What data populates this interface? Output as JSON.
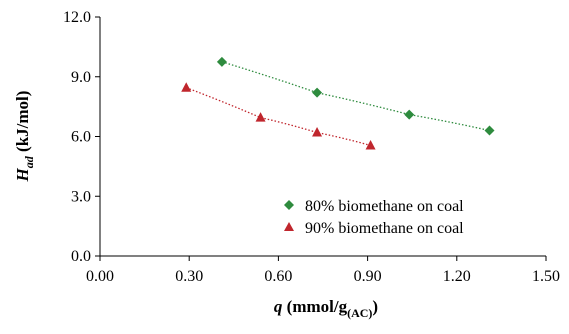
{
  "chart_data": {
    "type": "scatter",
    "xlabel": {
      "main": "q",
      "unit_open": " (mmol/g",
      "unit_sub": "(AC)",
      "unit_close": ")"
    },
    "ylabel": {
      "main": "H",
      "sub": "ad",
      "unit": " (kJ/mol)"
    },
    "xlim": [
      0,
      1.5
    ],
    "ylim": [
      0,
      12
    ],
    "x_ticks": [
      "0.00",
      "0.30",
      "0.60",
      "0.90",
      "1.20",
      "1.50"
    ],
    "y_ticks": [
      "0.0",
      "3.0",
      "6.0",
      "9.0",
      "12.0"
    ],
    "x_tick_values": [
      0,
      0.3,
      0.6,
      0.9,
      1.2,
      1.5
    ],
    "y_tick_values": [
      0,
      3,
      6,
      9,
      12
    ],
    "grid": false,
    "legend_position": "bottom-right",
    "series": [
      {
        "name": "80% biomethane on coal",
        "marker": "diamond",
        "color": "#2e8b3e",
        "trendline": "dotted",
        "x": [
          0.41,
          0.73,
          1.04,
          1.31
        ],
        "y": [
          9.75,
          8.2,
          7.1,
          6.3
        ]
      },
      {
        "name": "90% biomethane on coal",
        "marker": "triangle",
        "color": "#c0262d",
        "trendline": "dotted",
        "x": [
          0.29,
          0.54,
          0.73,
          0.91
        ],
        "y": [
          8.45,
          6.95,
          6.2,
          5.55
        ]
      }
    ]
  }
}
